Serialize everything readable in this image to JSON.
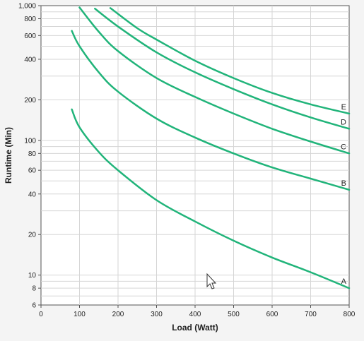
{
  "chart_data": {
    "type": "line",
    "title": "",
    "xlabel": "Load (Watt)",
    "ylabel": "Runtime (Min)",
    "x_scale": "linear",
    "y_scale": "log",
    "xlim": [
      0,
      800
    ],
    "ylim": [
      6,
      1000
    ],
    "x_ticks": [
      0,
      100,
      200,
      300,
      400,
      500,
      600,
      700,
      800
    ],
    "x_tick_labels": [
      "0",
      "100",
      "200",
      "300",
      "400",
      "500",
      "600",
      "700",
      "800"
    ],
    "y_ticks": [
      6,
      8,
      10,
      20,
      40,
      60,
      80,
      100,
      200,
      400,
      600,
      800,
      1000
    ],
    "y_tick_labels": [
      "6",
      "8",
      "10",
      "20",
      "40",
      "60",
      "80",
      "100",
      "200",
      "400",
      "600",
      "800",
      "1,000"
    ],
    "grid": true,
    "legend": "end-of-line labels",
    "line_color": "#21b47a",
    "series": [
      {
        "name": "A",
        "x": [
          80,
          100,
          150,
          200,
          300,
          400,
          500,
          600,
          700,
          800
        ],
        "values": [
          170,
          125,
          82,
          60,
          36,
          25,
          18,
          13.5,
          10.5,
          8
        ]
      },
      {
        "name": "B",
        "x": [
          80,
          100,
          150,
          200,
          300,
          400,
          500,
          600,
          700,
          800
        ],
        "values": [
          650,
          500,
          320,
          230,
          145,
          105,
          80,
          63,
          52,
          43
        ]
      },
      {
        "name": "C",
        "x": [
          100,
          150,
          200,
          300,
          400,
          500,
          600,
          700,
          800
        ],
        "values": [
          970,
          640,
          460,
          290,
          210,
          158,
          122,
          98,
          80
        ]
      },
      {
        "name": "D",
        "x": [
          140,
          200,
          300,
          400,
          500,
          600,
          700,
          800
        ],
        "values": [
          950,
          700,
          450,
          320,
          240,
          185,
          148,
          122
        ]
      },
      {
        "name": "E",
        "x": [
          180,
          250,
          300,
          400,
          500,
          600,
          700,
          800
        ],
        "values": [
          960,
          680,
          560,
          390,
          290,
          225,
          185,
          158
        ]
      }
    ]
  }
}
